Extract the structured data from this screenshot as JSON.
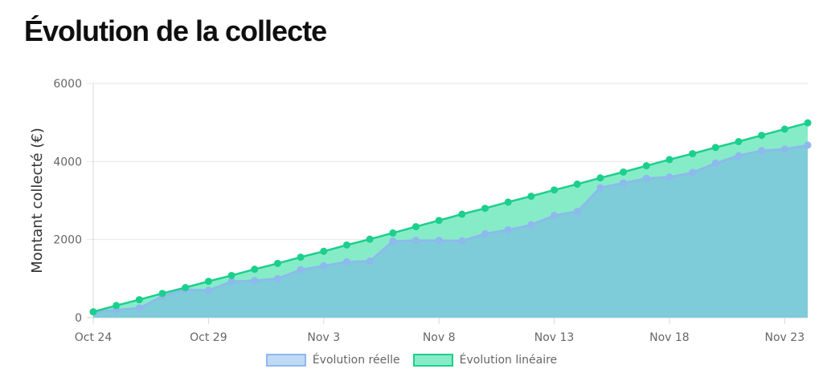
{
  "title": "Évolution de la collecte",
  "colors": {
    "reelle_line": "#8fb8ee",
    "reelle_fill": "#c0d9f6",
    "lineaire_line": "#1ccf8c",
    "lineaire_fill": "#86ecc8",
    "overlap_fill": "#7ecbd9"
  },
  "chart_data": {
    "type": "area",
    "ylabel": "Montant collecté (€)",
    "xlabel": "",
    "ylim": [
      0,
      6000
    ],
    "yticks": [
      "0",
      "2000",
      "4000",
      "6000"
    ],
    "x_tick_labels": [
      {
        "index": 0,
        "label": "Oct 24"
      },
      {
        "index": 5,
        "label": "Oct 29"
      },
      {
        "index": 10,
        "label": "Nov 3"
      },
      {
        "index": 15,
        "label": "Nov 8"
      },
      {
        "index": 20,
        "label": "Nov 13"
      },
      {
        "index": 25,
        "label": "Nov 18"
      },
      {
        "index": 30,
        "label": "Nov 23"
      }
    ],
    "grid": true,
    "legend_position": "bottom",
    "series": [
      {
        "name": "Évolution réelle",
        "values": [
          150,
          200,
          250,
          550,
          720,
          700,
          930,
          950,
          1000,
          1230,
          1330,
          1430,
          1450,
          1960,
          1980,
          1980,
          1970,
          2150,
          2250,
          2380,
          2620,
          2720,
          3330,
          3450,
          3570,
          3600,
          3720,
          3960,
          4150,
          4280,
          4320,
          4420
        ]
      },
      {
        "name": "Évolution linéaire",
        "values": [
          150,
          310,
          460,
          620,
          770,
          930,
          1080,
          1240,
          1390,
          1550,
          1700,
          1860,
          2010,
          2170,
          2330,
          2490,
          2650,
          2800,
          2960,
          3110,
          3270,
          3420,
          3580,
          3730,
          3890,
          4050,
          4200,
          4360,
          4510,
          4670,
          4830,
          4990
        ]
      }
    ]
  }
}
